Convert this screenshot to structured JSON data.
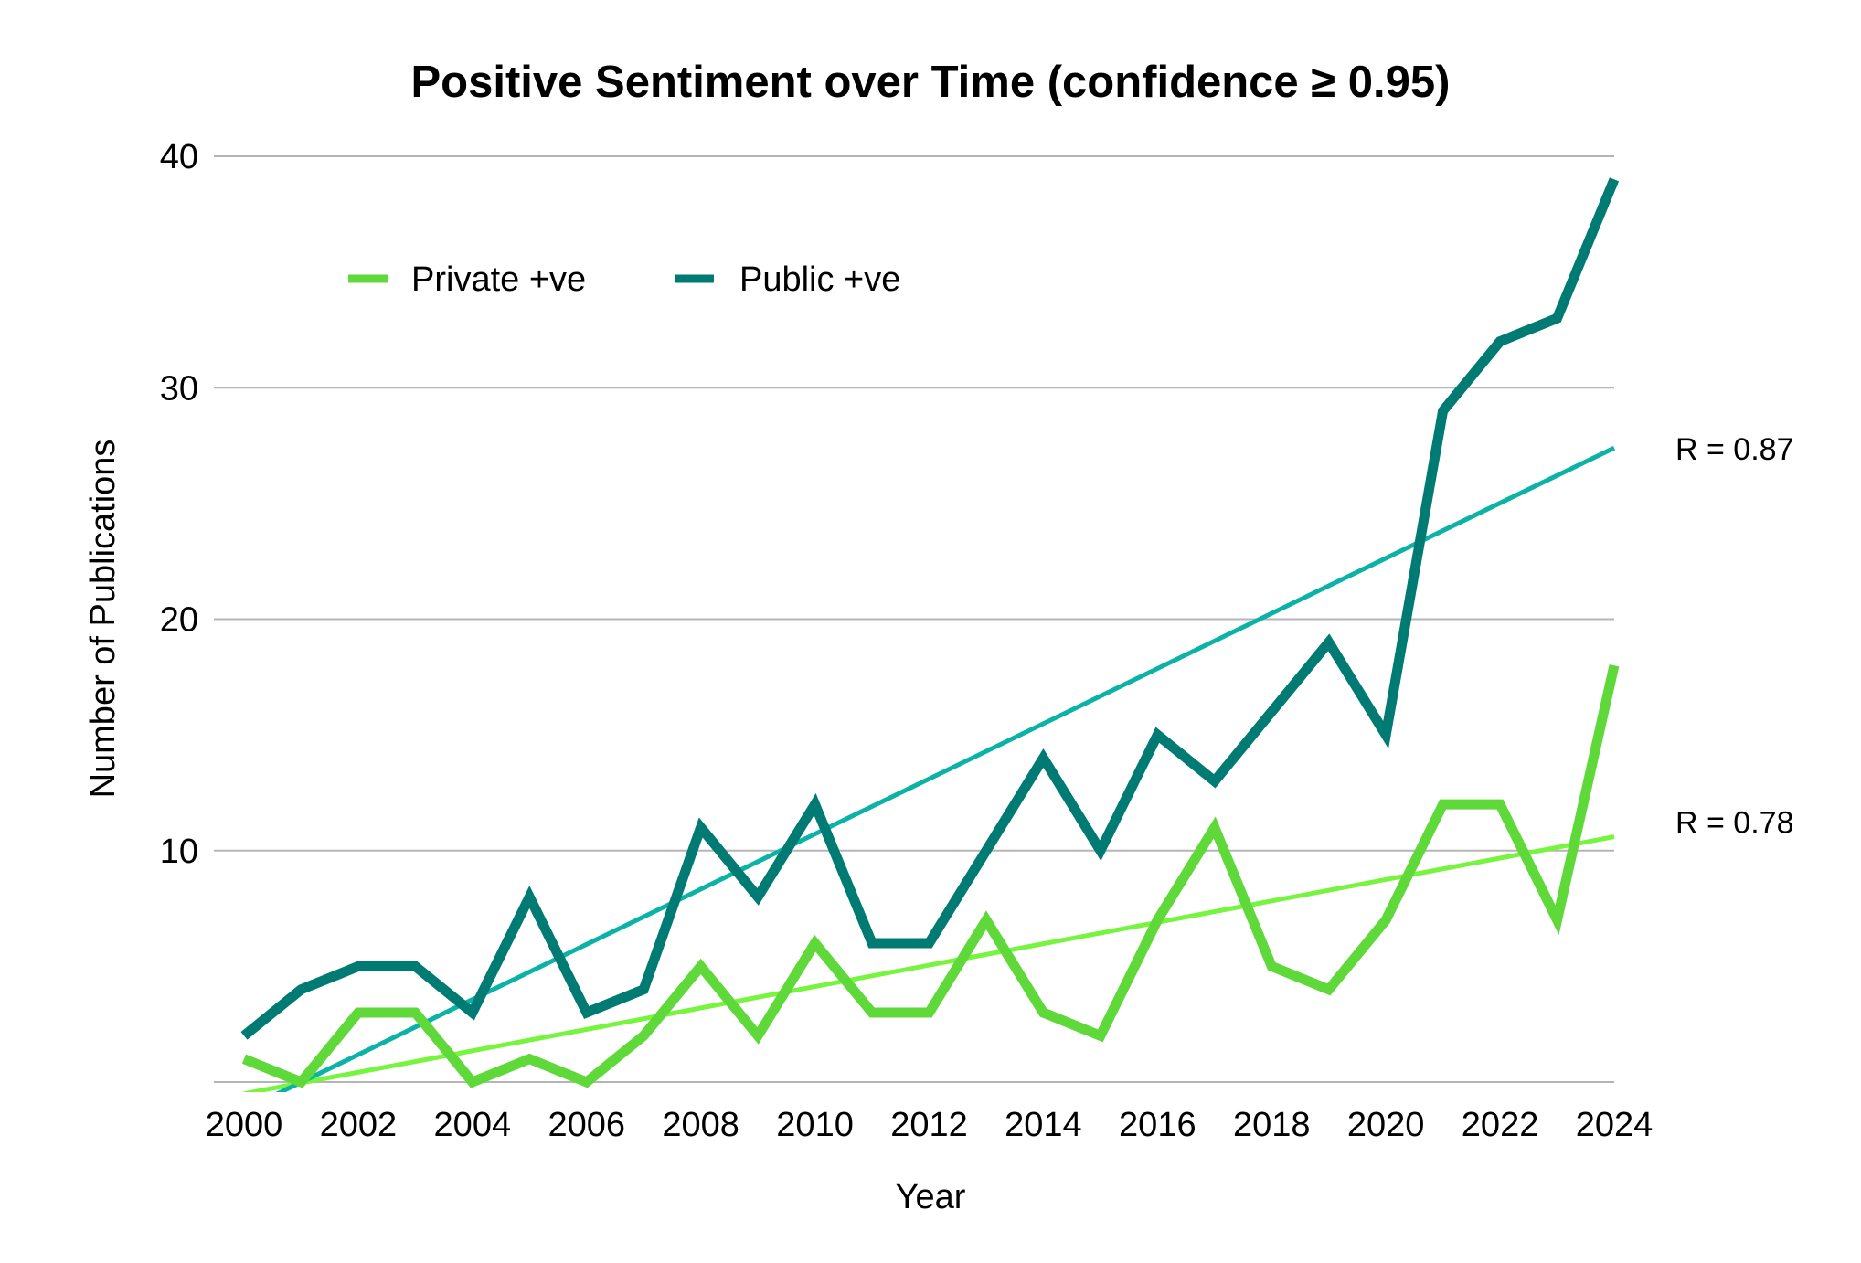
{
  "chart_data": {
    "type": "line",
    "title": "Positive Sentiment over Time (confidence ≥ 0.95)",
    "xlabel": "Year",
    "ylabel": "Number of Publications",
    "xlim": [
      2000,
      2024
    ],
    "ylim": [
      0,
      40
    ],
    "grid": true,
    "legend_placement": "top-left",
    "x_ticks": [
      "2000",
      "2002",
      "2004",
      "2006",
      "2008",
      "2010",
      "2012",
      "2014",
      "2016",
      "2018",
      "2020",
      "2022",
      "2024"
    ],
    "y_ticks": [
      "10",
      "20",
      "30",
      "40"
    ],
    "x": [
      2000,
      2001,
      2002,
      2003,
      2004,
      2005,
      2006,
      2007,
      2008,
      2009,
      2010,
      2011,
      2012,
      2013,
      2014,
      2015,
      2016,
      2017,
      2018,
      2019,
      2020,
      2021,
      2022,
      2023,
      2024
    ],
    "series": [
      {
        "name": "Private +ve",
        "color": "#5fd93a",
        "values": [
          1,
          0,
          3,
          3,
          0,
          1,
          0,
          2,
          5,
          2,
          6,
          3,
          3,
          7,
          3,
          2,
          7,
          11,
          5,
          4,
          7,
          12,
          12,
          7,
          18
        ],
        "trendline": {
          "start": -0.5,
          "end": 10.6,
          "color": "#77f43e",
          "label": "R = 0.78"
        }
      },
      {
        "name": "Public +ve",
        "color": "#007b73",
        "values": [
          2,
          4,
          5,
          5,
          3,
          8,
          3,
          4,
          11,
          8,
          12,
          6,
          6,
          10,
          14,
          10,
          15,
          13,
          16,
          19,
          15,
          29,
          32,
          33,
          39
        ],
        "trendline": {
          "start": -1.2,
          "end": 27.4,
          "color": "#0ab3a6",
          "label": "R = 0.87"
        }
      }
    ]
  }
}
